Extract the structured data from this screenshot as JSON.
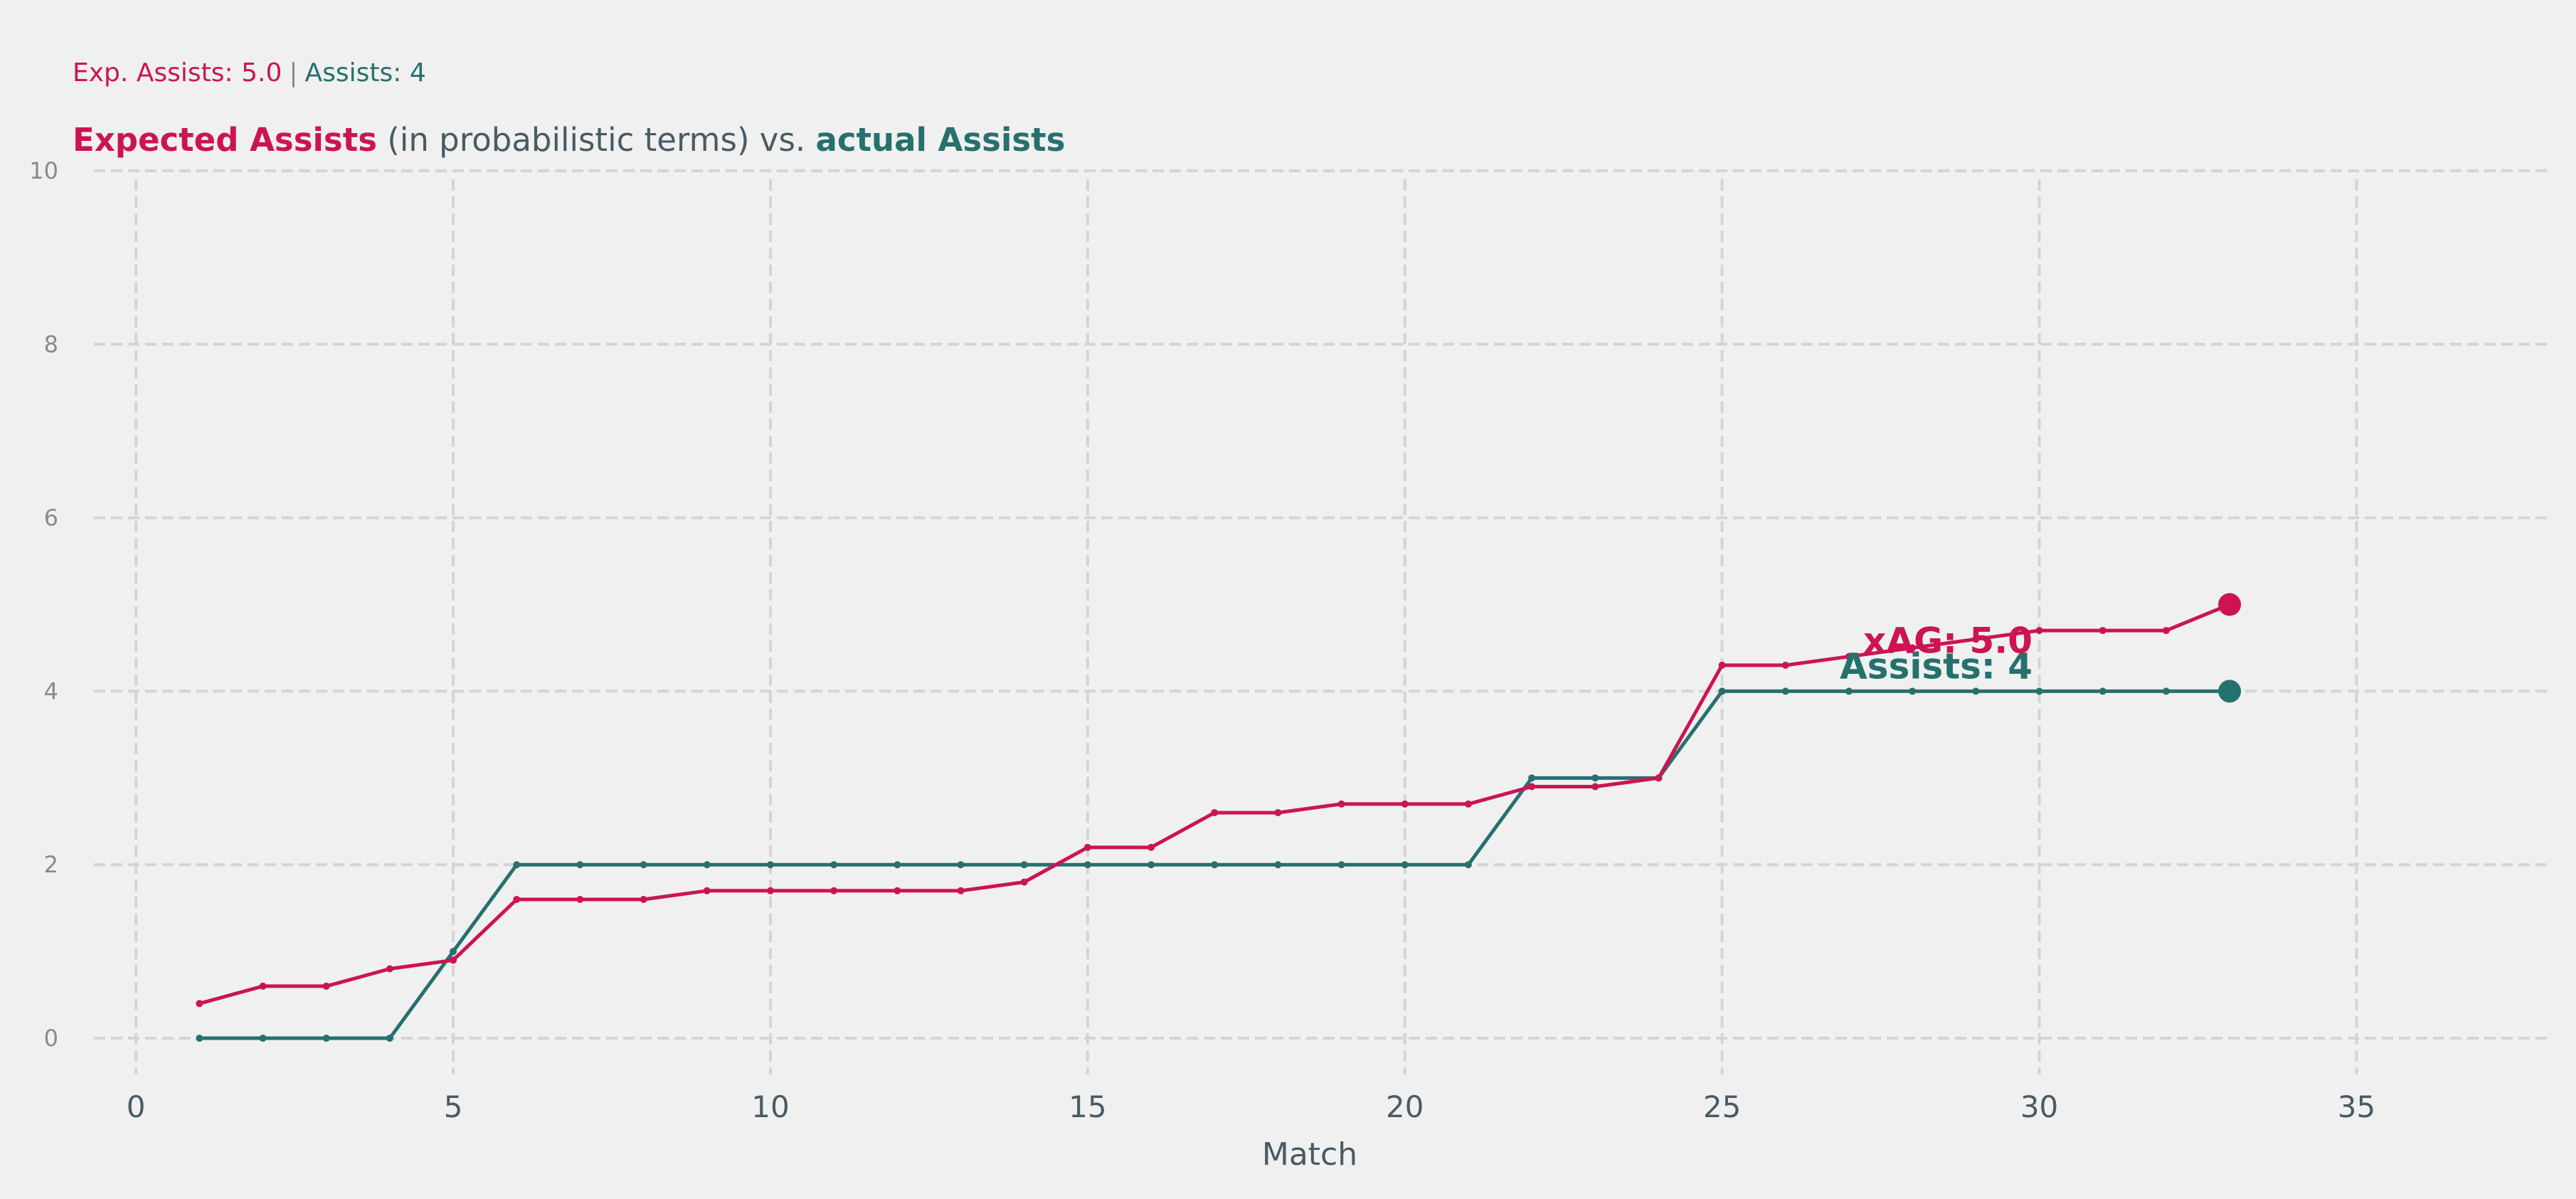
{
  "summary": {
    "xag_text": "Exp. Assists: 5.0",
    "separator": "|",
    "assists_text": "Assists: 4"
  },
  "title": {
    "part1": "Expected Assists",
    "part2": " (in probabilistic terms) vs. ",
    "part3": "actual Assists"
  },
  "colors": {
    "background": "#f0f0f0",
    "xag": "#cc1452",
    "assists": "#26706e",
    "grid": "#d4d4d4",
    "text": "#4a5a63"
  },
  "chart_data": {
    "type": "line",
    "xlabel": "Match",
    "ylabel": "",
    "xlim": [
      -1,
      38
    ],
    "ylim": [
      -0.5,
      10
    ],
    "xticks": [
      0,
      5,
      10,
      15,
      20,
      25,
      30,
      35
    ],
    "yticks": [
      0,
      2,
      4,
      6,
      8,
      10
    ],
    "grid": true,
    "x": [
      1,
      2,
      3,
      4,
      5,
      6,
      7,
      8,
      9,
      10,
      11,
      12,
      13,
      14,
      15,
      16,
      17,
      18,
      19,
      20,
      21,
      22,
      23,
      24,
      25,
      26,
      27,
      28,
      29,
      30,
      31,
      32,
      33
    ],
    "series": [
      {
        "key": "xag",
        "values": [
          0.4,
          0.6,
          0.6,
          0.8,
          0.9,
          1.6,
          1.6,
          1.6,
          1.7,
          1.7,
          1.7,
          1.7,
          1.7,
          1.8,
          2.2,
          2.2,
          2.6,
          2.6,
          2.7,
          2.7,
          2.7,
          2.9,
          2.9,
          3.0,
          4.3,
          4.3,
          4.4,
          4.5,
          4.6,
          4.7,
          4.7,
          4.7,
          5.0
        ],
        "end_label": "xAG: 5.0"
      },
      {
        "key": "assists",
        "values": [
          0,
          0,
          0,
          0,
          1,
          2,
          2,
          2,
          2,
          2,
          2,
          2,
          2,
          2,
          2,
          2,
          2,
          2,
          2,
          2,
          2,
          3,
          3,
          3,
          4,
          4,
          4,
          4,
          4,
          4,
          4,
          4,
          4
        ],
        "end_label": "Assists: 4"
      }
    ]
  }
}
